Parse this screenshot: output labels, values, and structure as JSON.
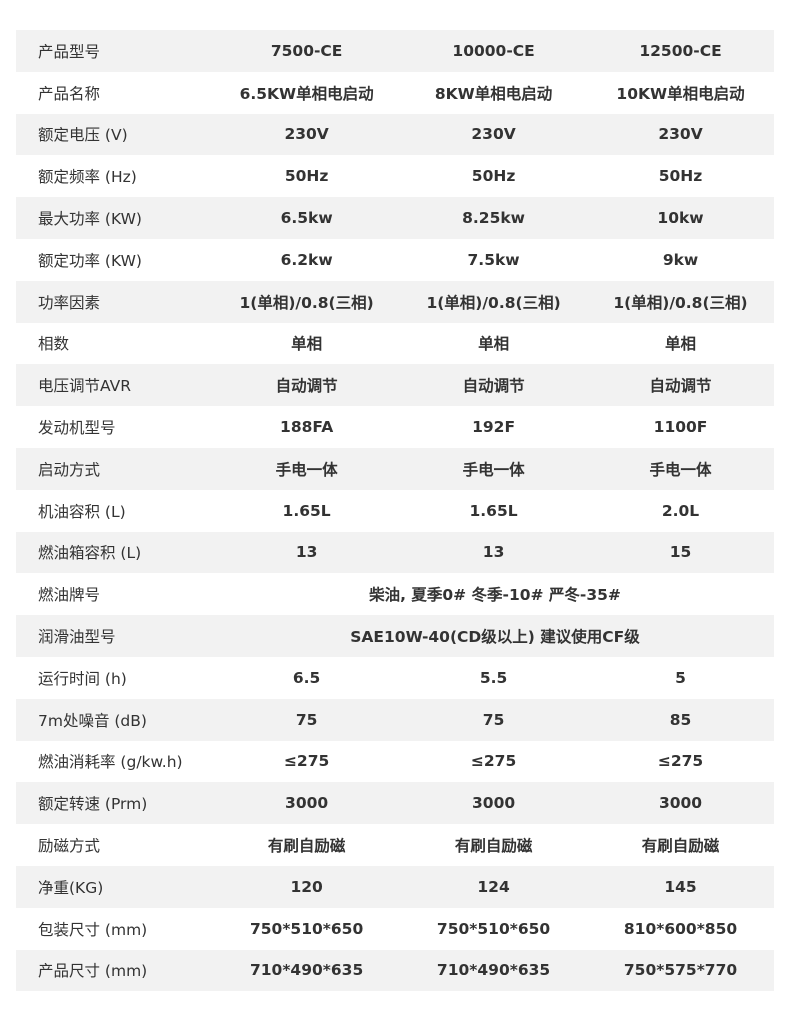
{
  "rows": [
    {
      "label": "产品型号",
      "values": [
        "7500-CE",
        "10000-CE",
        "12500-CE"
      ]
    },
    {
      "label": "产品名称",
      "values": [
        "6.5KW单相电启动",
        "8KW单相电启动",
        "10KW单相电启动"
      ]
    },
    {
      "label": "额定电压 (V)",
      "values": [
        "230V",
        "230V",
        "230V"
      ]
    },
    {
      "label": "额定频率 (Hz)",
      "values": [
        "50Hz",
        "50Hz",
        "50Hz"
      ]
    },
    {
      "label": "最大功率 (KW)",
      "values": [
        "6.5kw",
        "8.25kw",
        "10kw"
      ]
    },
    {
      "label": "额定功率 (KW)",
      "values": [
        "6.2kw",
        "7.5kw",
        "9kw"
      ]
    },
    {
      "label": "功率因素",
      "values": [
        "1(单相)/0.8(三相)",
        "1(单相)/0.8(三相)",
        "1(单相)/0.8(三相)"
      ]
    },
    {
      "label": "相数",
      "values": [
        "单相",
        "单相",
        "单相"
      ]
    },
    {
      "label": "电压调节AVR",
      "values": [
        "自动调节",
        "自动调节",
        "自动调节"
      ]
    },
    {
      "label": "发动机型号",
      "values": [
        "188FA",
        "192F",
        "1100F"
      ]
    },
    {
      "label": "启动方式",
      "values": [
        "手电一体",
        "手电一体",
        "手电一体"
      ]
    },
    {
      "label": "机油容积 (L)",
      "values": [
        "1.65L",
        "1.65L",
        "2.0L"
      ]
    },
    {
      "label": "燃油箱容积 (L)",
      "values": [
        "13",
        "13",
        "15"
      ]
    },
    {
      "label": "燃油牌号",
      "span": "柴油, 夏季0# 冬季-10#  严冬-35#"
    },
    {
      "label": "润滑油型号",
      "span": "SAE10W-40(CD级以上) 建议使用CF级"
    },
    {
      "label": "运行时间 (h)",
      "values": [
        "6.5",
        "5.5",
        "5"
      ]
    },
    {
      "label": "7m处噪音 (dB)",
      "values": [
        "75",
        "75",
        "85"
      ]
    },
    {
      "label": "燃油消耗率 (g/kw.h)",
      "values": [
        "≤275",
        "≤275",
        "≤275"
      ]
    },
    {
      "label": "额定转速 (Prm)",
      "values": [
        "3000",
        "3000",
        "3000"
      ]
    },
    {
      "label": "励磁方式",
      "values": [
        "有刷自励磁",
        "有刷自励磁",
        "有刷自励磁"
      ]
    },
    {
      "label": "净重(KG)",
      "values": [
        "120",
        "124",
        "145"
      ]
    },
    {
      "label": "包装尺寸 (mm)",
      "values": [
        "750*510*650",
        "750*510*650",
        "810*600*850"
      ]
    },
    {
      "label": "产品尺寸 (mm)",
      "values": [
        "710*490*635",
        "710*490*635",
        "750*575*770"
      ]
    }
  ],
  "colors": {
    "stripe": "#f2f2f2",
    "text": "#333333"
  }
}
